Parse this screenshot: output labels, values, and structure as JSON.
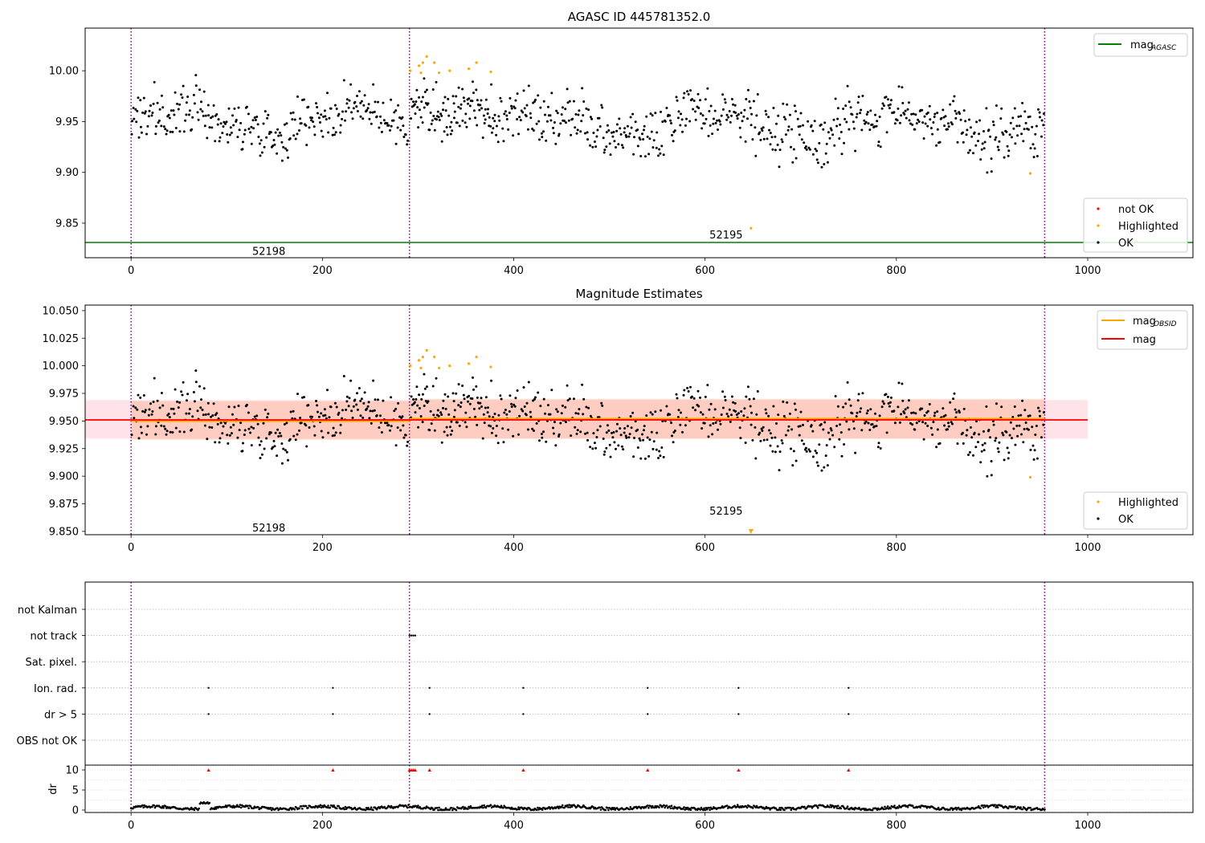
{
  "chart_data": [
    {
      "type": "scatter",
      "title": "AGASC ID 445781352.0",
      "xlim": [
        -48,
        1110
      ],
      "ylim": [
        9.816,
        10.042
      ],
      "xticks": [
        "0",
        "200",
        "400",
        "600",
        "800",
        "1000"
      ],
      "yticks": [
        "9.85",
        "9.90",
        "9.95",
        "10.00"
      ],
      "vlines_x": [
        0,
        291,
        955
      ],
      "reference_line": {
        "name": "mag_AGASC",
        "y": 9.831,
        "color": "#008000"
      },
      "annotations": [
        {
          "text": "52198",
          "x": 144,
          "y": 9.822
        },
        {
          "text": "52195",
          "x": 622,
          "y": 9.838
        }
      ],
      "legend_lines": [
        {
          "label": "mag",
          "sub": "AGASC",
          "color": "#008000"
        }
      ],
      "legend_points": [
        {
          "label": "not OK",
          "color": "#ff0000"
        },
        {
          "label": "Highlighted",
          "color": "#ffa500"
        },
        {
          "label": "OK",
          "color": "#000000"
        }
      ],
      "series": [
        {
          "name": "OK",
          "segments": [
            {
              "x0": 0,
              "x1": 290,
              "mean": 9.951,
              "spread": 0.028,
              "n": 290
            },
            {
              "x0": 292,
              "x1": 380,
              "mean": 9.97,
              "spread": 0.03,
              "n": 110
            },
            {
              "x0": 380,
              "x1": 955,
              "mean": 9.948,
              "spread": 0.03,
              "n": 580
            }
          ]
        },
        {
          "name": "Highlighted",
          "x": [
            292,
            301,
            303,
            305,
            309,
            317,
            322,
            333,
            353,
            361,
            376,
            940,
            648
          ],
          "y": [
            10.0,
            10.005,
            9.998,
            10.008,
            10.014,
            10.008,
            9.998,
            10.0,
            10.002,
            10.008,
            9.999,
            9.899,
            9.845
          ]
        }
      ]
    },
    {
      "type": "scatter",
      "title": "Magnitude Estimates",
      "xlim": [
        -48,
        1110
      ],
      "ylim": [
        9.847,
        10.055
      ],
      "xticks": [
        "0",
        "200",
        "400",
        "600",
        "800",
        "1000"
      ],
      "yticks": [
        "9.850",
        "9.875",
        "9.900",
        "9.925",
        "9.950",
        "9.975",
        "10.000",
        "10.025",
        "10.050"
      ],
      "vlines_x": [
        0,
        291,
        955
      ],
      "bands": [
        {
          "x0": -48,
          "x1": 1000,
          "y0": 9.934,
          "y1": 9.969,
          "color": "#ffc0cb",
          "alpha": 0.45
        },
        {
          "x0": 0,
          "x1": 291,
          "y0": 9.933,
          "y1": 9.968,
          "color": "#ffa07a",
          "alpha": 0.35
        },
        {
          "x0": 291,
          "x1": 955,
          "y0": 9.934,
          "y1": 9.97,
          "color": "#ffa07a",
          "alpha": 0.35
        }
      ],
      "mag_obsid": [
        {
          "x0": 0,
          "x1": 291,
          "y": 9.95
        },
        {
          "x0": 291,
          "x1": 955,
          "y": 9.952
        }
      ],
      "mag_line": {
        "y": 9.951,
        "x0": -48,
        "x1": 1000
      },
      "annotations": [
        {
          "text": "52198",
          "x": 144,
          "y": 9.853
        },
        {
          "text": "52195",
          "x": 622,
          "y": 9.868
        }
      ],
      "legend_lines": [
        {
          "label": "mag",
          "sub": "OBSID",
          "color": "#ffa500"
        },
        {
          "label": "mag",
          "sub": "",
          "color": "#ff0000"
        }
      ],
      "legend_points": [
        {
          "label": "Highlighted",
          "color": "#ffa500"
        },
        {
          "label": "OK",
          "color": "#000000"
        }
      ],
      "series": [
        {
          "name": "OK",
          "segments": [
            {
              "x0": 0,
              "x1": 290,
              "mean": 9.951,
              "spread": 0.028,
              "n": 290
            },
            {
              "x0": 292,
              "x1": 380,
              "mean": 9.97,
              "spread": 0.03,
              "n": 110
            },
            {
              "x0": 380,
              "x1": 955,
              "mean": 9.948,
              "spread": 0.03,
              "n": 580
            }
          ]
        },
        {
          "name": "Highlighted",
          "x": [
            292,
            301,
            303,
            305,
            309,
            317,
            322,
            333,
            353,
            361,
            376,
            940
          ],
          "y": [
            10.0,
            10.005,
            9.998,
            10.008,
            10.014,
            10.008,
            9.998,
            10.0,
            10.002,
            10.008,
            9.999,
            9.899
          ]
        }
      ],
      "off_scale_marker": {
        "x": 648,
        "color": "#ffa500"
      }
    },
    {
      "type": "scatter",
      "title": "",
      "xlim": [
        -48,
        1110
      ],
      "xticks": [
        "0",
        "200",
        "400",
        "600",
        "800",
        "1000"
      ],
      "vlines_x": [
        0,
        291,
        955
      ],
      "flag_rows": [
        "not Kalman",
        "not track",
        "Sat. pixel.",
        "Ion. rad.",
        "dr > 5",
        "OBS not OK"
      ],
      "flag_points": [
        {
          "row": "not track",
          "x": [
            291,
            293,
            295,
            297
          ]
        },
        {
          "row": "Ion. rad.",
          "x": [
            81,
            211,
            312,
            410,
            540,
            635,
            750
          ]
        },
        {
          "row": "dr > 5",
          "x": [
            81,
            211,
            312,
            410,
            540,
            635,
            750
          ]
        }
      ],
      "dr_ylabel": "dr",
      "dr_yticks": [
        "0",
        "5",
        "10"
      ],
      "dr_ylim": [
        -0.6,
        11.2
      ],
      "dr_flags_x": [
        81,
        211,
        291,
        293,
        295,
        297,
        312,
        410,
        540,
        635,
        750
      ],
      "dr_flag_y": 10,
      "dr_series": {
        "x0": 0,
        "x1": 955,
        "level": 0.6,
        "spread": 0.7,
        "bump": {
          "x0": 72,
          "x1": 82,
          "y": 2.0
        }
      }
    }
  ]
}
